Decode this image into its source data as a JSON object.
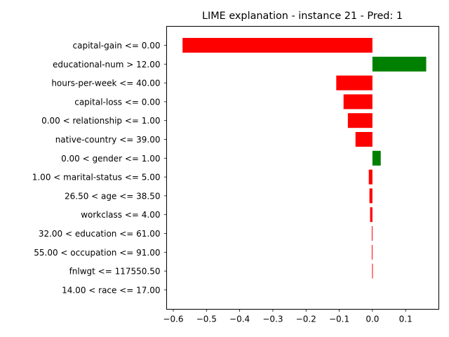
{
  "chart_data": {
    "type": "bar",
    "orientation": "horizontal",
    "title": "LIME explanation - instance 21 - Pred: 1",
    "xlabel": "",
    "ylabel": "",
    "xlim": [
      -0.62,
      0.2
    ],
    "xticks": [
      -0.6,
      -0.5,
      -0.4,
      -0.3,
      -0.2,
      -0.1,
      0.0,
      0.1
    ],
    "xtick_labels": [
      "−0.6",
      "−0.5",
      "−0.4",
      "−0.3",
      "−0.2",
      "−0.1",
      "0.0",
      "0.1"
    ],
    "grid": false,
    "categories": [
      "capital-gain <= 0.00",
      "educational-num > 12.00",
      "hours-per-week <= 40.00",
      "capital-loss <= 0.00",
      "0.00 < relationship <= 1.00",
      "native-country <= 39.00",
      "0.00 < gender <= 1.00",
      "1.00 < marital-status <= 5.00",
      "26.50 < age <= 38.50",
      "workclass <= 4.00",
      "32.00 < education <= 61.00",
      "55.00 < occupation <= 91.00",
      "fnlwgt <= 117550.50",
      "14.00 < race <= 17.00"
    ],
    "values": [
      -0.572,
      0.162,
      -0.109,
      -0.087,
      -0.074,
      -0.051,
      0.025,
      -0.011,
      -0.009,
      -0.007,
      -0.002,
      -0.002,
      -0.001,
      0.0
    ],
    "colors": {
      "positive": "#008000",
      "negative": "#ff0000",
      "axis": "#000000"
    }
  }
}
